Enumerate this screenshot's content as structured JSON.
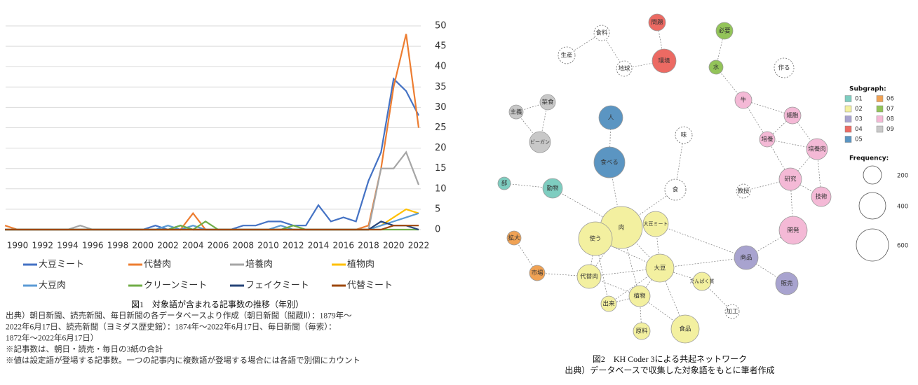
{
  "chart_data": {
    "type": "line",
    "x": [
      1989,
      1990,
      1991,
      1992,
      1993,
      1994,
      1995,
      1996,
      1997,
      1998,
      1999,
      2000,
      2001,
      2002,
      2003,
      2004,
      2005,
      2006,
      2007,
      2008,
      2009,
      2010,
      2011,
      2012,
      2013,
      2014,
      2015,
      2016,
      2017,
      2018,
      2019,
      2020,
      2021,
      2022
    ],
    "xlim": [
      1989,
      2022
    ],
    "xticks": [
      1990,
      1992,
      1994,
      1996,
      1998,
      2000,
      2002,
      2004,
      2006,
      2008,
      2010,
      2012,
      2014,
      2016,
      2018,
      2020,
      2022
    ],
    "ylim": [
      0,
      50
    ],
    "yticks": [
      0,
      5,
      10,
      15,
      20,
      25,
      30,
      35,
      40,
      45,
      50
    ],
    "grid": true,
    "series": [
      {
        "name": "大豆ミート",
        "color": "#4472c4",
        "values": [
          0,
          0,
          0,
          0,
          0,
          0,
          0,
          0,
          0,
          0,
          0,
          0,
          1,
          0,
          1,
          0,
          0,
          0,
          0,
          1,
          1,
          2,
          2,
          1,
          1,
          6,
          2,
          3,
          2,
          12,
          19,
          37,
          34,
          28
        ]
      },
      {
        "name": "代替肉",
        "color": "#ed7d31",
        "values": [
          1,
          0,
          0,
          0,
          0,
          0,
          0,
          0,
          0,
          0,
          0,
          0,
          0,
          0,
          0,
          4,
          0,
          0,
          0,
          0,
          0,
          0,
          0,
          0,
          0,
          0,
          0,
          0,
          0,
          1,
          15,
          35,
          48,
          25
        ]
      },
      {
        "name": "培養肉",
        "color": "#a5a5a5",
        "values": [
          0,
          0,
          0,
          0,
          0,
          0,
          1,
          0,
          0,
          0,
          0,
          0,
          0,
          0,
          0,
          0,
          0,
          0,
          0,
          0,
          0,
          0,
          0,
          0,
          0,
          0,
          0,
          0,
          0,
          0,
          15,
          15,
          19,
          11
        ]
      },
      {
        "name": "植物肉",
        "color": "#ffc000",
        "values": [
          0,
          0,
          0,
          0,
          0,
          0,
          0,
          0,
          0,
          0,
          0,
          0,
          0,
          0,
          0,
          0,
          0,
          0,
          0,
          0,
          0,
          0,
          0,
          0,
          0,
          0,
          0,
          0,
          0,
          0,
          1,
          3,
          5,
          4
        ]
      },
      {
        "name": "大豆肉",
        "color": "#5b9bd5",
        "values": [
          0,
          0,
          0,
          0,
          0,
          0,
          0,
          0,
          0,
          0,
          0,
          0,
          0,
          1,
          0,
          1,
          0,
          0,
          0,
          0,
          0,
          0,
          1,
          0,
          0,
          0,
          0,
          0,
          0,
          0,
          1,
          2,
          3,
          4
        ]
      },
      {
        "name": "クリーンミート",
        "color": "#70ad47",
        "values": [
          0,
          0,
          0,
          0,
          0,
          0,
          0,
          0,
          0,
          0,
          0,
          0,
          0,
          0,
          1,
          0,
          2,
          0,
          0,
          0,
          0,
          0,
          0,
          1,
          0,
          0,
          0,
          0,
          0,
          0,
          0,
          0,
          0,
          0
        ]
      },
      {
        "name": "フェイクミート",
        "color": "#264478",
        "values": [
          0,
          0,
          0,
          0,
          0,
          0,
          0,
          0,
          0,
          0,
          0,
          0,
          0,
          0,
          0,
          0,
          0,
          0,
          0,
          0,
          0,
          0,
          0,
          0,
          0,
          0,
          0,
          0,
          0,
          0,
          2,
          1,
          1,
          0
        ]
      },
      {
        "name": "代替ミート",
        "color": "#9e480e",
        "values": [
          0,
          0,
          0,
          0,
          0,
          0,
          0,
          0,
          0,
          0,
          0,
          0,
          0,
          0,
          0,
          0,
          0,
          0,
          0,
          0,
          0,
          0,
          0,
          0,
          0,
          0,
          0,
          0,
          0,
          0,
          0,
          1,
          1,
          1
        ]
      }
    ],
    "caption": "図1　対象語が含まれる記事数の推移（年別）",
    "notes": [
      "出典）朝日新聞、読売新聞、毎日新聞の各データベースより作成（朝日新聞（聞蔵Ⅱ）：1879年～",
      "2022年6月17日、読売新聞（ヨミダス歴史館）：1874年～2022年6月17日、毎日新聞（毎索）：",
      "1872年～2022年6月17日）",
      "※記事数は、朝日・読売・毎日の3紙の合計",
      "※値は設定語が登場する記事数。一つの記事内に複数語が登場する場合には各語で別個にカウント"
    ]
  },
  "network": {
    "nodes": [
      {
        "label": "問題",
        "subgraph": "04"
      },
      {
        "label": "必要",
        "subgraph": "07"
      },
      {
        "label": "食料"
      },
      {
        "label": "生産"
      },
      {
        "label": "環境",
        "subgraph": "04"
      },
      {
        "label": "地球"
      },
      {
        "label": "水",
        "subgraph": "07"
      },
      {
        "label": "作る"
      },
      {
        "label": "牛",
        "subgraph": "08"
      },
      {
        "label": "主義",
        "subgraph": "09"
      },
      {
        "label": "菜食",
        "subgraph": "09"
      },
      {
        "label": "人",
        "subgraph": "05"
      },
      {
        "label": "細胞",
        "subgraph": "08"
      },
      {
        "label": "味"
      },
      {
        "label": "培養",
        "subgraph": "08"
      },
      {
        "label": "ビーガン",
        "subgraph": "09"
      },
      {
        "label": "培養肉",
        "subgraph": "08"
      },
      {
        "label": "食べる",
        "subgraph": "05"
      },
      {
        "label": "研究",
        "subgraph": "08"
      },
      {
        "label": "部",
        "subgraph": "01"
      },
      {
        "label": "動物",
        "subgraph": "01"
      },
      {
        "label": "食"
      },
      {
        "label": "教授"
      },
      {
        "label": "技術",
        "subgraph": "08"
      },
      {
        "label": "肉",
        "subgraph": "02"
      },
      {
        "label": "大豆ミート",
        "subgraph": "02"
      },
      {
        "label": "使う",
        "subgraph": "02"
      },
      {
        "label": "開発",
        "subgraph": "08"
      },
      {
        "label": "拡大",
        "subgraph": "06"
      },
      {
        "label": "商品",
        "subgraph": "03"
      },
      {
        "label": "大豆",
        "subgraph": "02"
      },
      {
        "label": "市場",
        "subgraph": "06"
      },
      {
        "label": "代替肉",
        "subgraph": "02"
      },
      {
        "label": "たんぱく質",
        "subgraph": "02"
      },
      {
        "label": "販売",
        "subgraph": "03"
      },
      {
        "label": "植物",
        "subgraph": "02"
      },
      {
        "label": "出来",
        "subgraph": "02"
      },
      {
        "label": "加工"
      },
      {
        "label": "原料",
        "subgraph": "02"
      },
      {
        "label": "食品",
        "subgraph": "02"
      }
    ],
    "subgraph_title": "Subgraph:",
    "subgraphs": [
      {
        "name": "01",
        "color": "#7ecdc0"
      },
      {
        "name": "02",
        "color": "#f3f0a0"
      },
      {
        "name": "03",
        "color": "#a8a3cf"
      },
      {
        "name": "04",
        "color": "#ec6a63"
      },
      {
        "name": "05",
        "color": "#5b95c2"
      },
      {
        "name": "06",
        "color": "#f0a254"
      },
      {
        "name": "07",
        "color": "#93c459"
      },
      {
        "name": "08",
        "color": "#f4b9d6"
      },
      {
        "name": "09",
        "color": "#c8c8c8"
      }
    ],
    "frequency_title": "Frequency:",
    "frequency_legend": [
      200,
      400,
      600
    ],
    "caption": "図2　KH Coder 3による共起ネットワーク",
    "source": "出典）データベースで収集した対象語をもとに筆者作成"
  }
}
